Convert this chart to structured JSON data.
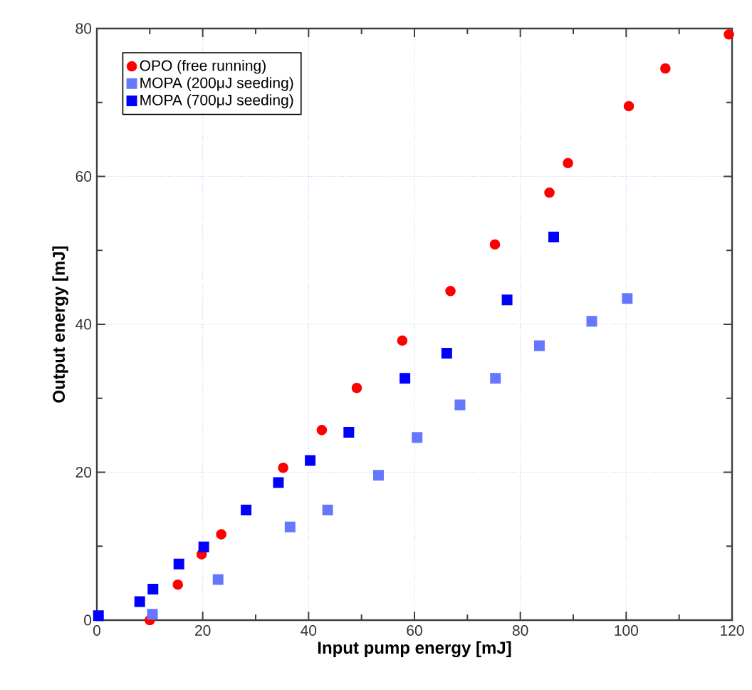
{
  "chart_data": {
    "type": "scatter",
    "xlabel": "Input pump energy [mJ]",
    "ylabel": "Output energy [mJ]",
    "xlim": [
      0,
      120
    ],
    "ylim": [
      0,
      80
    ],
    "xticks": [
      0,
      20,
      40,
      60,
      80,
      100,
      120
    ],
    "yticks": [
      0,
      20,
      40,
      60,
      80
    ],
    "grid": true,
    "legend": "top left",
    "series": [
      {
        "name": "OPO (free running)",
        "color": "#ff0000",
        "marker": "circle",
        "x": [
          10.0,
          15.3,
          19.8,
          23.5,
          35.2,
          42.5,
          49.1,
          57.7,
          66.8,
          75.2,
          85.5,
          89.0,
          100.5,
          107.4,
          119.4
        ],
        "values": [
          0,
          4.8,
          8.9,
          11.6,
          20.6,
          25.7,
          31.4,
          37.8,
          44.5,
          50.8,
          57.8,
          61.8,
          69.5,
          74.6,
          79.2
        ]
      },
      {
        "name": "MOPA (200μJ seeding)",
        "color": "#6677ff",
        "marker": "square",
        "x": [
          10.5,
          22.9,
          36.5,
          43.6,
          53.2,
          60.5,
          68.6,
          75.3,
          83.6,
          93.5,
          100.2
        ],
        "values": [
          0.8,
          5.5,
          12.6,
          14.9,
          19.6,
          24.7,
          29.1,
          32.7,
          37.1,
          40.4,
          43.5
        ]
      },
      {
        "name": "MOPA (700μJ seeding)",
        "color": "#0000ff",
        "marker": "square",
        "x": [
          0.3,
          8.1,
          10.6,
          15.5,
          20.2,
          28.2,
          34.3,
          40.3,
          47.6,
          58.2,
          66.1,
          77.5,
          86.3
        ],
        "values": [
          0.6,
          2.5,
          4.2,
          7.6,
          9.9,
          14.9,
          18.6,
          21.6,
          25.4,
          32.7,
          36.1,
          43.3,
          51.8
        ]
      }
    ]
  }
}
